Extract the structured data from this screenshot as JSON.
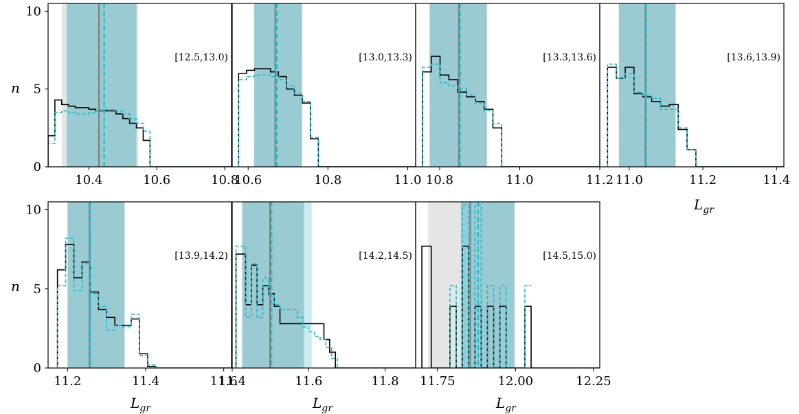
{
  "colors": {
    "black_hist": "#000000",
    "cyan_hist": "#17becf",
    "black_band": "#bdbdbd",
    "cyan_band": "#9edae5",
    "black_median_line": "#7f7f7f",
    "cyan_median_line": "#17becf"
  },
  "labels": {
    "ylabel": "n",
    "xlabel_main": "L",
    "xlabel_sub": "gr"
  },
  "chart_data": [
    {
      "type": "step-histogram",
      "bin_label": "[12.5,13.0)",
      "xlim": [
        10.28,
        10.82
      ],
      "ylim": [
        0,
        10.5
      ],
      "xticks": [
        "10.4",
        "10.6",
        "10.8"
      ],
      "xtick_values": [
        10.4,
        10.6,
        10.8
      ],
      "yticks": [
        "0",
        "5",
        "10"
      ],
      "ytick_values": [
        0,
        5,
        10
      ],
      "black_band": [
        10.32,
        10.54
      ],
      "cyan_band": [
        10.335,
        10.545
      ],
      "black_median": 10.43,
      "cyan_median": 10.445,
      "series": [
        {
          "name": "",
          "color": "black",
          "edges": [
            10.28,
            10.3,
            10.32,
            10.34,
            10.36,
            10.38,
            10.4,
            10.42,
            10.44,
            10.46,
            10.48,
            10.5,
            10.52,
            10.54,
            10.56,
            10.58,
            10.6,
            10.82
          ],
          "values": [
            2.0,
            4.3,
            4.0,
            3.9,
            3.8,
            3.8,
            3.7,
            3.6,
            3.6,
            3.6,
            3.4,
            3.1,
            2.8,
            2.5,
            1.7,
            0,
            0
          ]
        },
        {
          "name": "",
          "color": "cyan",
          "edges": [
            10.28,
            10.3,
            10.32,
            10.34,
            10.36,
            10.38,
            10.4,
            10.42,
            10.44,
            10.46,
            10.48,
            10.5,
            10.52,
            10.54,
            10.56,
            10.58,
            10.6,
            10.82
          ],
          "values": [
            1.5,
            3.5,
            3.6,
            3.5,
            3.4,
            3.4,
            3.5,
            3.6,
            3.7,
            3.7,
            3.6,
            3.4,
            3.1,
            2.8,
            2.3,
            0,
            0
          ]
        }
      ]
    },
    {
      "type": "step-histogram",
      "bin_label": "[13.0,13.3)",
      "xlim": [
        10.56,
        11.02
      ],
      "ylim": [
        0,
        10.5
      ],
      "xticks": [
        "10.6",
        "10.8",
        "11.0"
      ],
      "xtick_values": [
        10.6,
        10.8,
        11.0
      ],
      "yticks": [],
      "ytick_values": [],
      "black_band": [
        10.615,
        10.735
      ],
      "cyan_band": [
        10.615,
        10.735
      ],
      "black_median": 10.668,
      "cyan_median": 10.672,
      "series": [
        {
          "name": "",
          "color": "black",
          "edges": [
            10.576,
            10.596,
            10.616,
            10.636,
            10.656,
            10.676,
            10.696,
            10.716,
            10.736,
            10.756,
            10.776,
            11.02
          ],
          "values": [
            6.0,
            6.2,
            6.3,
            6.3,
            6.1,
            5.8,
            5.0,
            4.6,
            4.1,
            1.8,
            0
          ]
        },
        {
          "name": "",
          "color": "cyan",
          "edges": [
            10.576,
            10.596,
            10.616,
            10.636,
            10.656,
            10.676,
            10.696,
            10.716,
            10.736,
            10.756,
            10.776,
            11.02
          ],
          "values": [
            5.6,
            5.8,
            5.9,
            5.9,
            5.8,
            5.6,
            5.2,
            4.7,
            4.2,
            1.9,
            0
          ]
        }
      ]
    },
    {
      "type": "step-histogram",
      "bin_label": "[13.3,13.6)",
      "xlim": [
        10.74,
        11.2
      ],
      "ylim": [
        0,
        10.5
      ],
      "xticks": [
        "10.8",
        "11.0",
        "11.2"
      ],
      "xtick_values": [
        10.8,
        11.0,
        11.2
      ],
      "yticks": [],
      "ytick_values": [],
      "black_band": [
        10.775,
        10.918
      ],
      "cyan_band": [
        10.775,
        10.918
      ],
      "black_median": 10.848,
      "cyan_median": 10.851,
      "series": [
        {
          "name": "",
          "color": "black",
          "edges": [
            10.757,
            10.779,
            10.801,
            10.823,
            10.845,
            10.867,
            10.889,
            10.911,
            10.933,
            10.955,
            11.2
          ],
          "values": [
            6.1,
            7.1,
            5.9,
            5.6,
            4.8,
            4.5,
            4.2,
            3.7,
            2.5,
            0
          ]
        },
        {
          "name": "",
          "color": "cyan",
          "edges": [
            10.757,
            10.779,
            10.801,
            10.823,
            10.845,
            10.867,
            10.889,
            10.911,
            10.933,
            10.955,
            11.2
          ],
          "values": [
            6.4,
            6.6,
            5.4,
            5.2,
            5.0,
            4.6,
            4.1,
            3.6,
            2.8,
            0
          ]
        }
      ]
    },
    {
      "type": "step-histogram",
      "bin_label": "[13.6,13.9)",
      "xlim": [
        10.92,
        11.42
      ],
      "ylim": [
        0,
        10.5
      ],
      "xticks": [
        "11.0",
        "11.2",
        "11.4"
      ],
      "xtick_values": [
        11.0,
        11.2,
        11.4
      ],
      "yticks": [],
      "ytick_values": [],
      "black_band": [
        10.972,
        11.126
      ],
      "cyan_band": [
        10.972,
        11.126
      ],
      "black_median": 11.044,
      "cyan_median": 11.046,
      "series": [
        {
          "name": "",
          "color": "black",
          "edges": [
            10.941,
            10.965,
            10.989,
            11.013,
            11.037,
            11.061,
            11.085,
            11.109,
            11.133,
            11.157,
            11.181,
            11.42
          ],
          "values": [
            6.4,
            5.7,
            6.4,
            4.7,
            4.5,
            4.2,
            3.9,
            4.0,
            2.4,
            1.1,
            0
          ]
        },
        {
          "name": "",
          "color": "cyan",
          "edges": [
            10.941,
            10.965,
            10.989,
            11.013,
            11.037,
            11.061,
            11.085,
            11.109,
            11.133,
            11.157,
            11.181,
            11.42
          ],
          "values": [
            6.6,
            5.7,
            6.0,
            4.8,
            4.6,
            4.4,
            3.7,
            3.7,
            2.5,
            1.1,
            0
          ]
        }
      ]
    },
    {
      "type": "step-histogram",
      "bin_label": "[13.9,14.2)",
      "xlim": [
        11.15,
        11.62
      ],
      "ylim": [
        0,
        10.5
      ],
      "xticks": [
        "11.2",
        "11.4",
        "11.6"
      ],
      "xtick_values": [
        11.2,
        11.4,
        11.6
      ],
      "yticks": [
        "0",
        "5",
        "10"
      ],
      "ytick_values": [
        0,
        5,
        10
      ],
      "black_band": [
        11.2,
        11.346
      ],
      "cyan_band": [
        11.2,
        11.346
      ],
      "black_median": 11.256,
      "cyan_median": 11.258,
      "series": [
        {
          "name": "",
          "color": "black",
          "edges": [
            11.174,
            11.195,
            11.216,
            11.237,
            11.258,
            11.279,
            11.3,
            11.321,
            11.342,
            11.363,
            11.384,
            11.405,
            11.426,
            11.62
          ],
          "values": [
            6.2,
            7.8,
            5.7,
            6.7,
            4.8,
            3.7,
            3.2,
            2.7,
            2.7,
            3.1,
            0.9,
            0.1,
            0
          ]
        },
        {
          "name": "",
          "color": "cyan",
          "edges": [
            11.174,
            11.195,
            11.216,
            11.237,
            11.258,
            11.279,
            11.3,
            11.321,
            11.342,
            11.363,
            11.384,
            11.405,
            11.426,
            11.62
          ],
          "values": [
            5.2,
            8.2,
            4.9,
            6.6,
            4.7,
            3.9,
            2.4,
            2.7,
            2.6,
            3.4,
            0.8,
            0.2,
            0
          ]
        }
      ]
    },
    {
      "type": "step-histogram",
      "bin_label": "[14.2,14.5)",
      "xlim": [
        11.4,
        11.88
      ],
      "ylim": [
        0,
        10.5
      ],
      "xticks": [
        "11.4",
        "11.6",
        "11.8"
      ],
      "xtick_values": [
        11.4,
        11.6,
        11.8
      ],
      "yticks": [],
      "ytick_values": [],
      "black_band": [
        11.426,
        11.588
      ],
      "cyan_band": [
        11.426,
        11.608
      ],
      "black_median": 11.499,
      "cyan_median": 11.503,
      "series": [
        {
          "name": "",
          "color": "black",
          "edges": [
            11.41,
            11.435,
            11.45,
            11.465,
            11.48,
            11.495,
            11.51,
            11.525,
            11.64,
            11.655,
            11.67,
            11.88
          ],
          "values": [
            7.2,
            4.0,
            6.5,
            4.0,
            5.2,
            4.7,
            3.9,
            2.8,
            1.8,
            1.0,
            0
          ]
        },
        {
          "name": "",
          "color": "cyan",
          "edges": [
            11.41,
            11.435,
            11.45,
            11.465,
            11.48,
            11.495,
            11.51,
            11.525,
            11.54,
            11.555,
            11.57,
            11.585,
            11.6,
            11.615,
            11.63,
            11.645,
            11.66,
            11.675,
            11.88
          ],
          "values": [
            7.7,
            3.2,
            6.6,
            3.2,
            5.7,
            4.6,
            4.0,
            3.7,
            3.7,
            3.7,
            3.2,
            2.6,
            2.3,
            2.0,
            1.8,
            1.3,
            0.6,
            0
          ]
        }
      ]
    },
    {
      "type": "step-histogram",
      "bin_label": "[14.5,15.0)",
      "xlim": [
        11.68,
        12.27
      ],
      "ylim": [
        0,
        10.5
      ],
      "xticks": [
        "11.75",
        "12.00",
        "12.25"
      ],
      "xtick_values": [
        11.75,
        12.0,
        12.25
      ],
      "yticks": [],
      "ytick_values": [],
      "black_band": [
        11.72,
        11.997
      ],
      "cyan_band": [
        11.825,
        11.997
      ],
      "black_median": 11.855,
      "cyan_median": 11.88,
      "series": [
        {
          "name": "",
          "color": "black",
          "edges": [
            11.7,
            11.73,
            11.79,
            11.81,
            11.83,
            11.85,
            11.87,
            11.89,
            11.91,
            11.93,
            11.95,
            11.97,
            11.99,
            12.03,
            12.05,
            12.27
          ],
          "values": [
            7.7,
            0,
            3.9,
            0,
            7.7,
            0,
            3.9,
            0,
            3.9,
            0,
            3.9,
            0,
            0,
            3.9,
            0
          ]
        },
        {
          "name": "",
          "color": "cyan",
          "edges": [
            11.79,
            11.81,
            11.83,
            11.85,
            11.87,
            11.89,
            11.91,
            11.93,
            11.95,
            11.97,
            11.99,
            12.03,
            12.05
          ],
          "values": [
            5.2,
            0,
            10.3,
            0,
            10.3,
            0,
            5.2,
            0,
            5.2,
            0,
            0,
            5.2
          ]
        }
      ]
    }
  ]
}
